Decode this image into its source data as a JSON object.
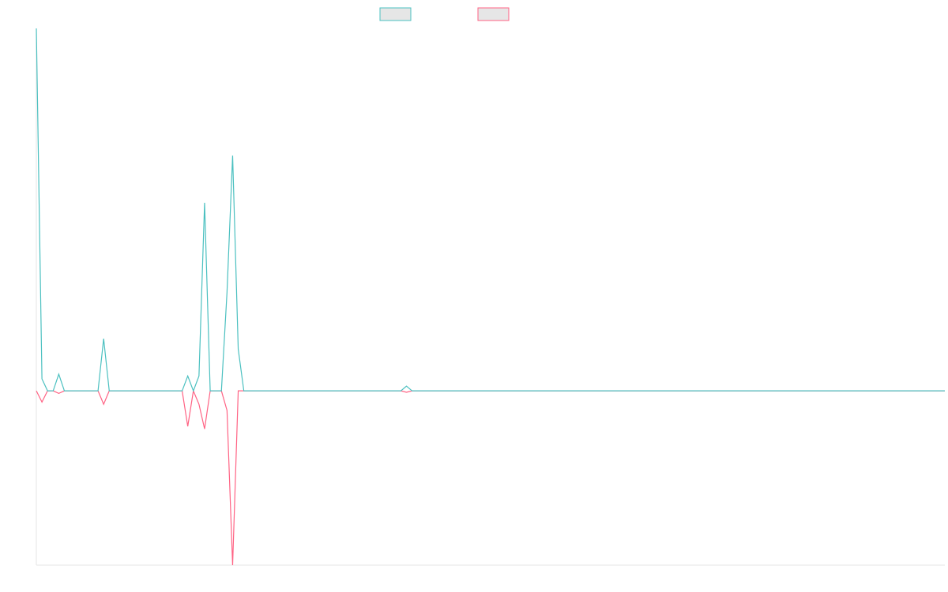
{
  "chart_data": {
    "type": "line",
    "categories": [
      null,
      null,
      null,
      null,
      null,
      null,
      null,
      null,
      null,
      null,
      null,
      null,
      null,
      null,
      null,
      null,
      null,
      null,
      null,
      null,
      null,
      null,
      null,
      null,
      null,
      null,
      null,
      null,
      null,
      null,
      null,
      null,
      null,
      null,
      null,
      null,
      null,
      null,
      null,
      null,
      null,
      null,
      null,
      null,
      null,
      null,
      null,
      null,
      null,
      null,
      null,
      null,
      null,
      null,
      null,
      null,
      null,
      null,
      null,
      null,
      null,
      null,
      null,
      null,
      null,
      null,
      null,
      null,
      null,
      null,
      null,
      null,
      null,
      null,
      null,
      null,
      null,
      null,
      null,
      null,
      null,
      null,
      null,
      null,
      null,
      null,
      null,
      null,
      null,
      null,
      null,
      null,
      null,
      null,
      null,
      null,
      null,
      null,
      null,
      null,
      null,
      null,
      null,
      null,
      null,
      null,
      null,
      null,
      null,
      null,
      null,
      null,
      null,
      null,
      null,
      null,
      null,
      null,
      null,
      null,
      null,
      null,
      null,
      null,
      null,
      null,
      null,
      null,
      null,
      null,
      null,
      null,
      null,
      null,
      null,
      null,
      null,
      null,
      null,
      null,
      null,
      null,
      null,
      null,
      null,
      null,
      null,
      null,
      null,
      null,
      null,
      null,
      null,
      null,
      null,
      null,
      null,
      null,
      null,
      null,
      null,
      null,
      null
    ],
    "series": [
      {
        "color": "#4bc0c0",
        "values": [
          100,
          3.3,
          0,
          0,
          4.6,
          0,
          0,
          0,
          0,
          0,
          0,
          0,
          14.4,
          0,
          0,
          0,
          0,
          0,
          0,
          0,
          0,
          0,
          0,
          0,
          0,
          0,
          0,
          4.1,
          0,
          4.1,
          51.9,
          0,
          0,
          0,
          27.2,
          64.9,
          11.5,
          0,
          0,
          0,
          0,
          0,
          0,
          0,
          0,
          0,
          0,
          0,
          0,
          0,
          0,
          0,
          0,
          0,
          0,
          0,
          0,
          0,
          0,
          0,
          0,
          0,
          0,
          0,
          0,
          0,
          1.3,
          0,
          0,
          0,
          0,
          0,
          0,
          0,
          0,
          0,
          0,
          0,
          0,
          0,
          0,
          0,
          0,
          0,
          0,
          0,
          0,
          0,
          0,
          0,
          0,
          0,
          0,
          0,
          0,
          0,
          0,
          0,
          0,
          0,
          0,
          0,
          0,
          0,
          0,
          0,
          0,
          0,
          0,
          0,
          0,
          0,
          0,
          0,
          0,
          0,
          0,
          0,
          0,
          0,
          0,
          0,
          0,
          0,
          0,
          0,
          0,
          0,
          0,
          0,
          0,
          0,
          0,
          0,
          0,
          0,
          0,
          0,
          0,
          0,
          0,
          0,
          0,
          0,
          0,
          0,
          0,
          0,
          0,
          0,
          0,
          0,
          0,
          0,
          0,
          0,
          0,
          0,
          0,
          0,
          0,
          0,
          0
        ]
      },
      {
        "color": "#ff6384",
        "values": [
          0,
          -3.1,
          0,
          0,
          -0.7,
          0,
          0,
          0,
          0,
          0,
          0,
          0,
          -3.7,
          0,
          0,
          0,
          0,
          0,
          0,
          0,
          0,
          0,
          0,
          0,
          0,
          0,
          0,
          -9.8,
          0,
          -3.7,
          -10.5,
          0,
          0,
          0,
          -5.4,
          -48.1,
          0,
          0,
          0,
          0,
          0,
          0,
          0,
          0,
          0,
          0,
          0,
          0,
          0,
          0,
          0,
          0,
          0,
          0,
          0,
          0,
          0,
          0,
          0,
          0,
          0,
          0,
          0,
          0,
          0,
          0,
          -0.4,
          0,
          0,
          0,
          0,
          0,
          0,
          0,
          0,
          0,
          0,
          0,
          0,
          0,
          0,
          0,
          0,
          0,
          0,
          0,
          0,
          0,
          0,
          0,
          0,
          0,
          0,
          0,
          0,
          0,
          0,
          0,
          0,
          0,
          0,
          0,
          0,
          0,
          0,
          0,
          0,
          0,
          0,
          0,
          0,
          0,
          0,
          0,
          0,
          0,
          0,
          0,
          0,
          0,
          0,
          0,
          0,
          0,
          0,
          0,
          0,
          0,
          0,
          0,
          0,
          0,
          0,
          0,
          0,
          0,
          0,
          0,
          0,
          0,
          0,
          0,
          0,
          0,
          0,
          0,
          0,
          0,
          0,
          0,
          0,
          0,
          0,
          0,
          0,
          0,
          0,
          0,
          0,
          0,
          0,
          0,
          0
        ]
      }
    ],
    "ylim": [
      -48.1,
      100
    ],
    "grid": false
  }
}
